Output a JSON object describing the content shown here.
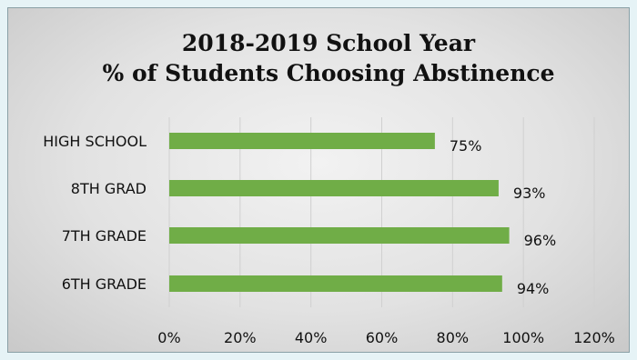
{
  "chart_data": {
    "type": "bar",
    "orientation": "horizontal",
    "title": "2018-2019 School Year",
    "subtitle": "% of Students Choosing Abstinence",
    "categories": [
      "HIGH SCHOOL",
      "8TH GRAD",
      "7TH GRADE",
      "6TH GRADE"
    ],
    "values": [
      75,
      93,
      96,
      94
    ],
    "data_labels": [
      "75%",
      "93%",
      "96%",
      "94%"
    ],
    "x_ticks": [
      "0%",
      "20%",
      "40%",
      "60%",
      "80%",
      "100%",
      "120%"
    ],
    "xlim": [
      0,
      120
    ],
    "grid": true,
    "bar_color": "#70ad47",
    "xlabel": "",
    "ylabel": ""
  }
}
